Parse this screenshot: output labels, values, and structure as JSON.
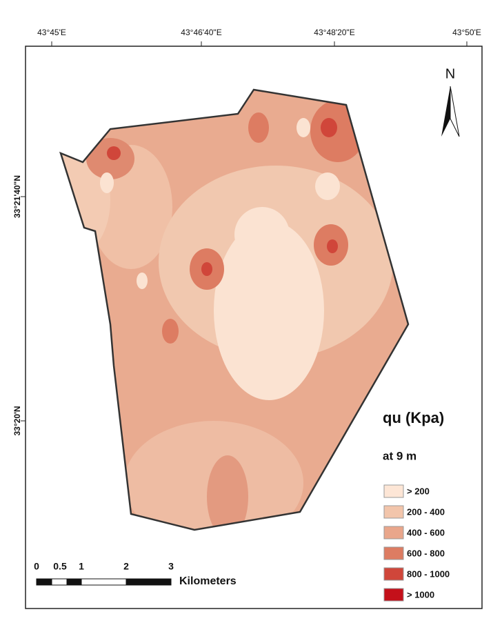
{
  "map": {
    "north": "N",
    "top_labels": [
      "43°45'E",
      "43°46'40\"E",
      "43°48'20\"E",
      "43°50'E"
    ],
    "left_labels": [
      "33°21'40\"N",
      "33°20'N"
    ],
    "legend": {
      "title": "qu (Kpa)",
      "subtitle": "at 9 m",
      "items": [
        {
          "label": "> 200",
          "color": "#fde6d6"
        },
        {
          "label": "200 - 400",
          "color": "#f2c5ab"
        },
        {
          "label": "400 - 600",
          "color": "#e9a68b"
        },
        {
          "label": "600 - 800",
          "color": "#dd7c62"
        },
        {
          "label": "800 - 1000",
          "color": "#d0463a"
        },
        {
          "label": "> 1000",
          "color": "#c4101a"
        }
      ]
    },
    "scale": {
      "labels": [
        "0",
        "0.5",
        "1",
        "2",
        "3"
      ],
      "unit": "Kilometers"
    }
  }
}
